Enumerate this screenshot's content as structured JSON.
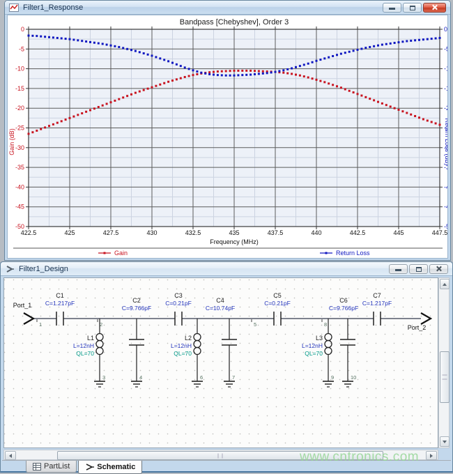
{
  "response_window": {
    "title": "Filter1_Response"
  },
  "design_window": {
    "title": "Filter1_Design",
    "tabs": [
      {
        "label": "PartList",
        "active": false
      },
      {
        "label": "Schematic",
        "active": true
      }
    ],
    "schematic": {
      "ports": [
        "Port_1",
        "Port_2"
      ],
      "node_numbers": [
        "1",
        "2",
        "3",
        "4",
        "5",
        "6",
        "7",
        "8",
        "9",
        "10"
      ],
      "components": [
        {
          "ref": "C1",
          "value": "C=1.217pF",
          "type": "series-capacitor"
        },
        {
          "ref": "C2",
          "value": "C=9.766pF",
          "type": "shunt-capacitor"
        },
        {
          "ref": "C3",
          "value": "C=0.21pF",
          "type": "series-capacitor"
        },
        {
          "ref": "C4",
          "value": "C=10.74pF",
          "type": "shunt-capacitor"
        },
        {
          "ref": "C5",
          "value": "C=0.21pF",
          "type": "series-capacitor"
        },
        {
          "ref": "C6",
          "value": "C=9.766pF",
          "type": "shunt-capacitor"
        },
        {
          "ref": "C7",
          "value": "C=1.217pF",
          "type": "series-capacitor"
        },
        {
          "ref": "L1",
          "value": "L=12nH",
          "q": "QL=70",
          "type": "shunt-inductor"
        },
        {
          "ref": "L2",
          "value": "L=12nH",
          "q": "QL=70",
          "type": "shunt-inductor"
        },
        {
          "ref": "L3",
          "value": "L=12nH",
          "q": "QL=70",
          "type": "shunt-inductor"
        }
      ],
      "colors": {
        "wire": "#333a4d",
        "ref_text": "#222222",
        "value_text": "#2233bb",
        "q_text": "#009988",
        "node_text": "#557060",
        "port_text": "#111111"
      }
    }
  },
  "chart_data": {
    "type": "line",
    "title": "Bandpass [Chebyshev], Order 3",
    "xlabel": "Frequency (MHz)",
    "ylabel_left": "Gain (dB)",
    "ylabel_right": "Return Loss (dB)",
    "xlim": [
      422.5,
      447.5
    ],
    "ylim": [
      -50,
      0
    ],
    "x_ticks": [
      "422.5",
      "425",
      "427.5",
      "430",
      "432.5",
      "435",
      "437.5",
      "440",
      "442.5",
      "445",
      "447.5"
    ],
    "y_ticks": [
      "0",
      "-5",
      "-10",
      "-15",
      "-20",
      "-25",
      "-30",
      "-35",
      "-40",
      "-45",
      "-50"
    ],
    "grid": "major+minor",
    "legend_position": "bottom",
    "x": [
      422.5,
      423,
      423.5,
      424,
      424.5,
      425,
      425.5,
      426,
      426.5,
      427,
      427.5,
      428,
      428.5,
      429,
      429.5,
      430,
      430.5,
      431,
      431.5,
      432,
      432.5,
      433,
      433.5,
      434,
      434.5,
      435,
      435.5,
      436,
      436.5,
      437,
      437.5,
      438,
      438.5,
      439,
      439.5,
      440,
      440.5,
      441,
      441.5,
      442,
      442.5,
      443,
      443.5,
      444,
      444.5,
      445,
      445.5,
      446,
      446.5,
      447,
      447.5
    ],
    "series": [
      {
        "name": "Gain",
        "color": "#c81420",
        "axis": "left",
        "values": [
          -26.5,
          -25.7,
          -24.9,
          -24.1,
          -23.3,
          -22.5,
          -21.7,
          -20.9,
          -20.1,
          -19.3,
          -18.5,
          -17.7,
          -16.9,
          -16.1,
          -15.4,
          -14.7,
          -14.0,
          -13.3,
          -12.7,
          -12.1,
          -11.6,
          -11.2,
          -10.9,
          -10.7,
          -10.6,
          -10.5,
          -10.5,
          -10.5,
          -10.6,
          -10.7,
          -10.8,
          -11.0,
          -11.3,
          -11.7,
          -12.2,
          -12.8,
          -13.4,
          -14.1,
          -14.8,
          -15.6,
          -16.4,
          -17.2,
          -18.0,
          -18.8,
          -19.6,
          -20.4,
          -21.2,
          -22.0,
          -22.8,
          -23.5,
          -24.2
        ]
      },
      {
        "name": "Return Loss",
        "color": "#1018c0",
        "axis": "right",
        "values": [
          -1.6,
          -1.7,
          -1.9,
          -2.1,
          -2.3,
          -2.5,
          -2.8,
          -3.1,
          -3.4,
          -3.7,
          -4.1,
          -4.5,
          -5.0,
          -5.5,
          -6.1,
          -6.7,
          -7.4,
          -8.1,
          -8.9,
          -9.7,
          -10.4,
          -11.0,
          -11.4,
          -11.6,
          -11.7,
          -11.7,
          -11.6,
          -11.5,
          -11.3,
          -11.1,
          -10.8,
          -10.4,
          -9.9,
          -9.3,
          -8.7,
          -8.0,
          -7.4,
          -6.8,
          -6.2,
          -5.7,
          -5.2,
          -4.7,
          -4.3,
          -3.9,
          -3.6,
          -3.3,
          -3.0,
          -2.8,
          -2.6,
          -2.4,
          -2.2
        ]
      }
    ]
  },
  "watermark": {
    "text": "www.cntronics.com"
  }
}
